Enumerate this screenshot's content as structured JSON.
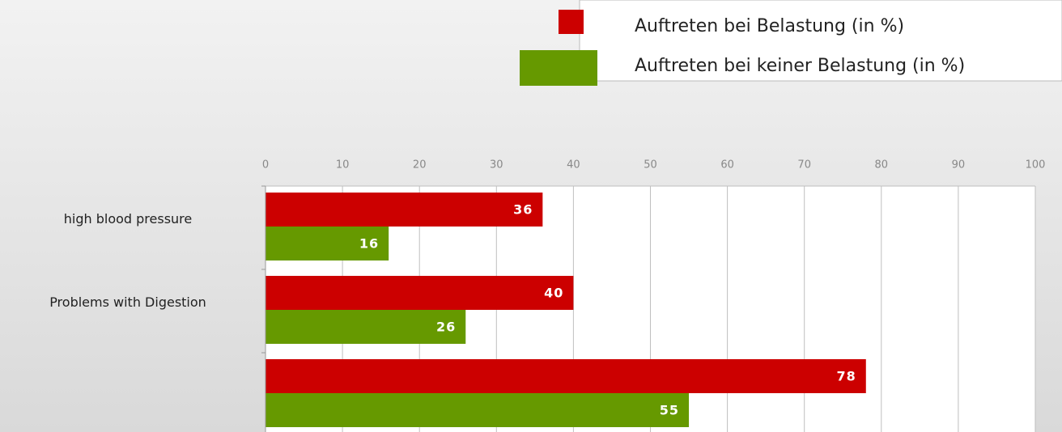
{
  "chart_data": {
    "type": "bar",
    "orientation": "horizontal",
    "categories": [
      "high blood pressure",
      "Problems with Digestion",
      null
    ],
    "series": [
      {
        "name": "Auftreten bei Belastung (in %)",
        "color": "#cc0000",
        "values": [
          36,
          40,
          78
        ]
      },
      {
        "name": "Auftreten bei keiner Belastung (in %)",
        "color": "#669900",
        "values": [
          16,
          26,
          55
        ]
      }
    ],
    "xlim": [
      0,
      100
    ],
    "xticks": [
      0,
      10,
      20,
      30,
      40,
      50,
      60,
      70,
      80,
      90,
      100
    ],
    "grid": true
  }
}
